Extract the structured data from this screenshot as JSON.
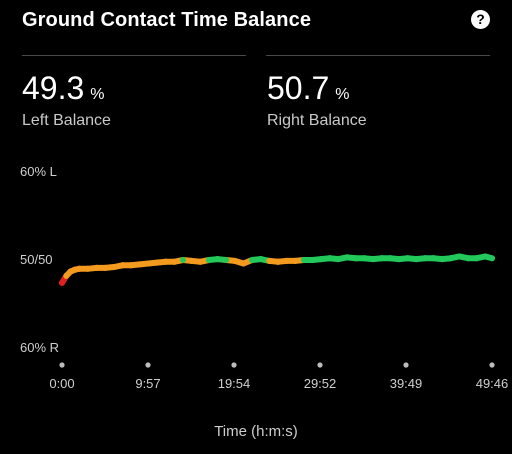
{
  "header": {
    "title": "Ground Contact Time Balance",
    "help_icon": "question-circle-icon"
  },
  "stats": {
    "left": {
      "value": "49.3",
      "unit": "%",
      "label": "Left Balance"
    },
    "right": {
      "value": "50.7",
      "unit": "%",
      "label": "Right Balance"
    }
  },
  "colors": {
    "background": "#000000",
    "balanced_green": "#22c95a",
    "slight_left_orange": "#f39a1f",
    "strong_left_red": "#e02020"
  },
  "chart_data": {
    "type": "line",
    "title": "",
    "xlabel": "Time (h:m:s)",
    "ylabel": "",
    "x_ticks": [
      "0:00",
      "9:57",
      "19:54",
      "29:52",
      "39:49",
      "49:46"
    ],
    "y_ticks": [
      "60% L",
      "50/50",
      "60% R"
    ],
    "ylim": [
      60,
      40
    ],
    "note_on_units": "y = right-foot GCT share in percent; 60% L at top (40), 50/50 center (50), 60% R at bottom (60)",
    "grid": false,
    "series": [
      {
        "x_minutes": [
          0,
          0.5,
          1,
          1.5,
          2,
          3,
          4,
          5,
          6,
          7,
          8,
          9,
          10,
          11,
          12,
          13,
          14,
          15,
          16,
          17,
          18,
          19,
          20,
          21,
          22,
          23,
          24,
          25,
          26,
          27,
          28,
          29,
          30,
          31,
          32,
          33,
          34,
          35,
          36,
          37,
          38,
          39,
          40,
          41,
          42,
          43,
          44,
          45,
          46,
          47,
          48,
          49,
          49.77
        ],
        "values": [
          52.6,
          51.8,
          51.3,
          51.1,
          51.0,
          51.0,
          50.9,
          50.9,
          50.8,
          50.6,
          50.6,
          50.5,
          50.4,
          50.3,
          50.2,
          50.2,
          50.0,
          50.1,
          50.2,
          50.0,
          49.9,
          50.0,
          50.1,
          50.4,
          50.0,
          49.9,
          50.1,
          50.2,
          50.1,
          50.1,
          50.0,
          50.0,
          49.9,
          49.8,
          49.9,
          49.7,
          49.8,
          49.8,
          49.9,
          49.8,
          49.8,
          49.9,
          49.8,
          49.9,
          49.8,
          49.8,
          49.9,
          49.8,
          49.6,
          49.8,
          49.8,
          49.6,
          49.8
        ]
      }
    ]
  }
}
